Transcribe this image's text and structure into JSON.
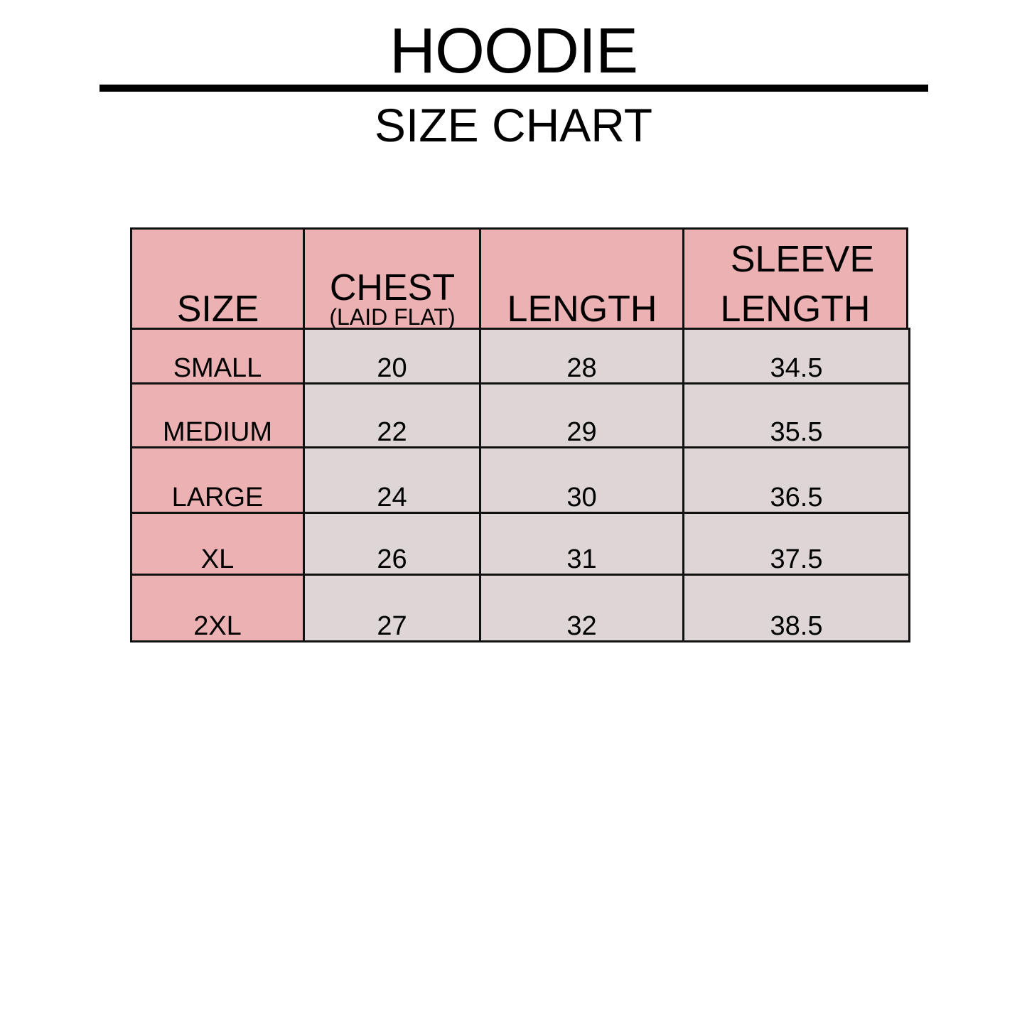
{
  "title": "HOODIE",
  "subtitle": "SIZE CHART",
  "colors": {
    "header_bg": "#ecb1b2",
    "size_col_bg": "#ecb1b2",
    "value_bg": "#ddd5d6",
    "border": "#111111"
  },
  "table": {
    "headers": [
      {
        "label": "SIZE"
      },
      {
        "label": "CHEST",
        "sub": "(LAID FLAT)"
      },
      {
        "label": "LENGTH"
      },
      {
        "label": "SLEEVE",
        "label2": "LENGTH"
      }
    ],
    "rows": [
      {
        "size": "SMALL",
        "chest": "20",
        "length": "28",
        "sleeve": "34.5"
      },
      {
        "size": "MEDIUM",
        "chest": "22",
        "length": "29",
        "sleeve": "35.5"
      },
      {
        "size": "LARGE",
        "chest": "24",
        "length": "30",
        "sleeve": "36.5"
      },
      {
        "size": "XL",
        "chest": "26",
        "length": "31",
        "sleeve": "37.5"
      },
      {
        "size": "2XL",
        "chest": "27",
        "length": "32",
        "sleeve": "38.5"
      }
    ]
  }
}
